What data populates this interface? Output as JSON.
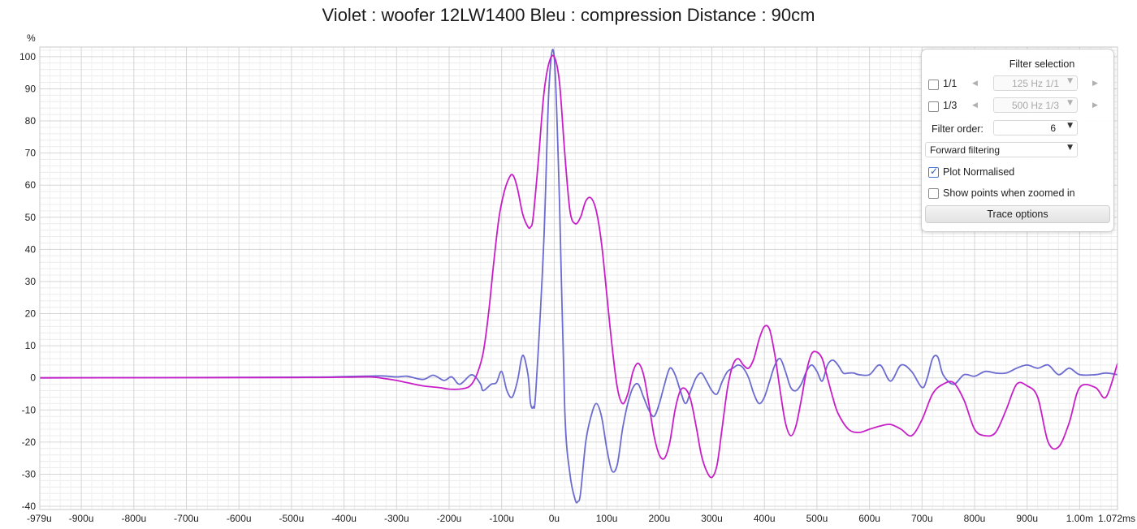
{
  "chart_data": {
    "type": "line",
    "title": "Violet : woofer 12LW1400 Bleu : compression Distance : 90cm",
    "ylabel": "%",
    "xlabel": "",
    "xlim": [
      -979,
      1072
    ],
    "ylim": [
      -41,
      103
    ],
    "x_unit": "us",
    "x_tick_values": [
      -979,
      -900,
      -800,
      -700,
      -600,
      -500,
      -400,
      -300,
      -200,
      -100,
      0,
      100,
      200,
      300,
      400,
      500,
      600,
      700,
      800,
      900,
      1000,
      1072
    ],
    "x_tick_labels": [
      "-979u",
      "-900u",
      "-800u",
      "-700u",
      "-600u",
      "-500u",
      "-400u",
      "-300u",
      "-200u",
      "-100u",
      "0u",
      "100u",
      "200u",
      "300u",
      "400u",
      "500u",
      "600u",
      "700u",
      "800u",
      "900u",
      "1.00m",
      "1.072ms"
    ],
    "y_ticks": [
      100,
      90,
      80,
      70,
      60,
      50,
      40,
      30,
      20,
      10,
      0,
      -10,
      -20,
      -30,
      -40
    ],
    "grid": true,
    "series": [
      {
        "color": "#6b6bd0",
        "x": [
          -979,
          -500,
          -400,
          -330,
          -300,
          -280,
          -250,
          -230,
          -210,
          -195,
          -180,
          -160,
          -150,
          -140,
          -135,
          -120,
          -110,
          -100,
          -90,
          -80,
          -70,
          -60,
          -50,
          -45,
          -40,
          -35,
          -20,
          -10,
          0,
          10,
          20,
          30,
          40,
          45,
          50,
          60,
          70,
          80,
          90,
          100,
          110,
          120,
          130,
          140,
          150,
          160,
          170,
          180,
          190,
          200,
          210,
          220,
          230,
          240,
          250,
          260,
          270,
          280,
          290,
          300,
          310,
          320,
          330,
          340,
          350,
          360,
          370,
          380,
          390,
          400,
          410,
          420,
          430,
          440,
          450,
          460,
          470,
          480,
          490,
          500,
          510,
          520,
          530,
          540,
          550,
          560,
          570,
          580,
          600,
          620,
          640,
          660,
          680,
          700,
          710,
          720,
          730,
          740,
          760,
          780,
          800,
          820,
          840,
          860,
          880,
          900,
          920,
          940,
          960,
          980,
          1000,
          1030,
          1050,
          1072
        ],
        "values": [
          0,
          0.2,
          0.4,
          0.6,
          0.3,
          0.5,
          -0.5,
          0.8,
          -0.8,
          0.3,
          -2,
          0.8,
          0.3,
          -2,
          -4,
          -2,
          -1.5,
          2,
          -4,
          -6,
          -1,
          7,
          1,
          -8,
          -9,
          -4,
          42,
          90,
          100,
          55,
          -10,
          -30,
          -38,
          -38.5,
          -36,
          -20,
          -12,
          -8,
          -12,
          -22,
          -29,
          -27,
          -16,
          -8,
          -3,
          -2,
          -6,
          -10,
          -12,
          -8,
          -2,
          3,
          1,
          -4,
          -8,
          -4,
          0,
          1.5,
          -1,
          -4,
          -5,
          -1,
          2,
          3,
          4,
          3,
          0,
          -5,
          -8,
          -6,
          -1,
          4,
          6,
          2,
          -3,
          -4,
          -2,
          2,
          4,
          2,
          -1,
          4,
          5.5,
          4,
          1.5,
          1.5,
          1.5,
          1,
          1,
          4,
          -1,
          4,
          2,
          -3,
          0,
          6,
          6.5,
          1,
          -2,
          1,
          0.5,
          2,
          1.5,
          1.5,
          3,
          4,
          3,
          4,
          1,
          3,
          1,
          1,
          1.5,
          1
        ]
      },
      {
        "color": "#c81ec8",
        "x": [
          -979,
          -500,
          -400,
          -350,
          -320,
          -300,
          -280,
          -250,
          -220,
          -200,
          -180,
          -165,
          -155,
          -145,
          -135,
          -125,
          -115,
          -105,
          -95,
          -85,
          -78,
          -70,
          -60,
          -50,
          -45,
          -40,
          -30,
          -20,
          -10,
          0,
          10,
          20,
          30,
          40,
          50,
          60,
          70,
          80,
          90,
          100,
          110,
          120,
          130,
          140,
          150,
          160,
          170,
          180,
          190,
          200,
          210,
          220,
          230,
          240,
          250,
          260,
          270,
          280,
          290,
          300,
          310,
          320,
          330,
          340,
          350,
          360,
          370,
          380,
          390,
          400,
          410,
          420,
          430,
          440,
          450,
          460,
          470,
          480,
          490,
          500,
          510,
          520,
          530,
          540,
          560,
          580,
          600,
          620,
          640,
          660,
          680,
          700,
          720,
          740,
          760,
          780,
          800,
          820,
          840,
          860,
          880,
          900,
          920,
          940,
          960,
          980,
          1000,
          1030,
          1050,
          1072
        ],
        "values": [
          0,
          0.1,
          0.2,
          0.3,
          -0.3,
          -0.8,
          -1.5,
          -2.5,
          -3,
          -3.5,
          -3.5,
          -3,
          -1.5,
          2,
          8,
          20,
          36,
          50,
          58,
          62.5,
          63,
          59,
          51,
          47,
          47,
          50,
          68,
          88,
          98,
          100,
          92,
          70,
          52,
          48,
          50,
          55,
          56,
          52,
          42,
          26,
          10,
          -3,
          -8,
          -5,
          2,
          4.5,
          1,
          -8,
          -18,
          -24,
          -25,
          -20,
          -10,
          -4,
          -3.5,
          -7,
          -15,
          -24,
          -29,
          -31,
          -27,
          -15,
          -3,
          4,
          6,
          4,
          3,
          6,
          12,
          16,
          15,
          7,
          -4,
          -14,
          -18,
          -15,
          -7,
          2,
          7.5,
          8,
          6,
          0,
          -6,
          -11,
          -16,
          -17,
          -16,
          -15,
          -14.5,
          -16,
          -18,
          -13,
          -5,
          -2,
          -1.5,
          -7,
          -16,
          -18,
          -17,
          -10,
          -2,
          -2.5,
          -6,
          -20,
          -21.5,
          -14,
          -3,
          -3,
          -6,
          4.5
        ]
      }
    ]
  },
  "filter_panel": {
    "heading": "Filter selection",
    "octave_1_label": "1/1",
    "octave_1_checked": false,
    "octave_1_value": "125 Hz 1/1",
    "octave_3_label": "1/3",
    "octave_3_checked": false,
    "octave_3_value": "500 Hz 1/3",
    "filter_order_label": "Filter order:",
    "filter_order_value": "6",
    "filtering_value": "Forward filtering",
    "plot_normalised_label": "Plot Normalised",
    "plot_normalised_checked": true,
    "show_points_label": "Show points when zoomed in",
    "show_points_checked": false,
    "trace_options_label": "Trace options"
  }
}
